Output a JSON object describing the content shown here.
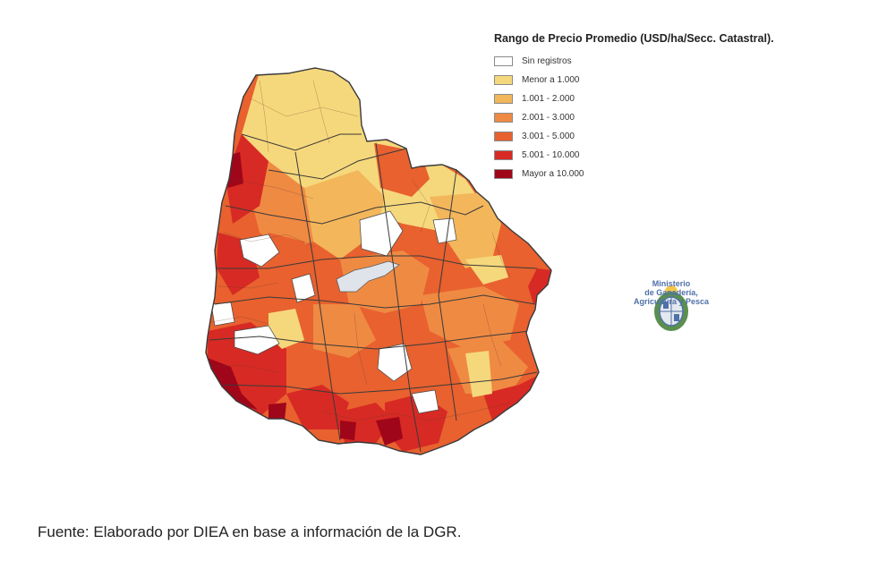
{
  "legend": {
    "title": "Rango de Precio Promedio (USD/ha/Secc. Catastral).",
    "items": [
      {
        "label": "Sin registros",
        "color": "#ffffff"
      },
      {
        "label": "Menor a 1.000",
        "color": "#f6d87c"
      },
      {
        "label": "1.001 - 2.000",
        "color": "#f3b65a"
      },
      {
        "label": "2.001 - 3.000",
        "color": "#ef8a43"
      },
      {
        "label": "3.001 - 5.000",
        "color": "#e8612f"
      },
      {
        "label": "5.001 - 10.000",
        "color": "#d72a24"
      },
      {
        "label": "Mayor a 10.000",
        "color": "#a0061a"
      }
    ]
  },
  "ministry": {
    "lines": [
      "Ministerio",
      "de Ganadería,",
      "Agricultura y Pesca"
    ],
    "color": "#4f71a8"
  },
  "map": {
    "outline_color": "#3a3a3a",
    "water_color": "#dfe3ea"
  },
  "source": "Fuente: Elaborado por DIEA en base a información de la DGR."
}
